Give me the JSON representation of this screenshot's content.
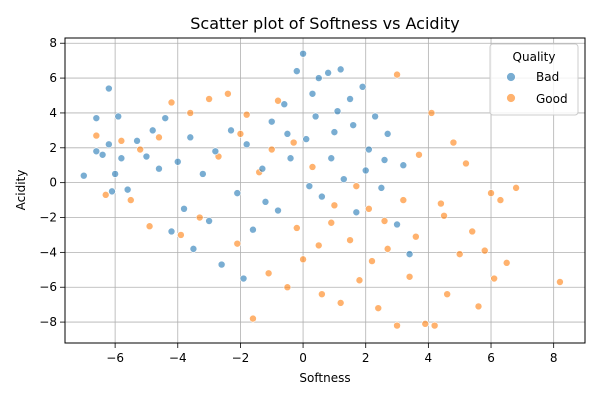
{
  "chart_data": {
    "type": "scatter",
    "title": "Scatter plot of Softness vs Acidity",
    "xlabel": "Softness",
    "ylabel": "Acidity",
    "xlim": [
      -7.6,
      9.0
    ],
    "ylim": [
      -9.2,
      8.3
    ],
    "xticks": [
      -6,
      -4,
      -2,
      0,
      2,
      4,
      6,
      8
    ],
    "yticks": [
      -8,
      -6,
      -4,
      -2,
      0,
      2,
      4,
      6,
      8
    ],
    "grid": true,
    "legend": {
      "title": "Quality",
      "placement": "top-right",
      "entries": [
        {
          "name": "Bad",
          "color": "#1f77b4"
        },
        {
          "name": "Good",
          "color": "#ff7f0e"
        }
      ]
    },
    "series": [
      {
        "name": "Bad",
        "color": "#1f77b4",
        "points": [
          [
            -7.0,
            0.4
          ],
          [
            -6.6,
            3.7
          ],
          [
            -6.6,
            1.8
          ],
          [
            -6.4,
            1.6
          ],
          [
            -6.2,
            5.4
          ],
          [
            -6.2,
            2.2
          ],
          [
            -6.1,
            -0.5
          ],
          [
            -6.0,
            0.5
          ],
          [
            -5.9,
            3.8
          ],
          [
            -5.8,
            1.4
          ],
          [
            -5.6,
            -0.4
          ],
          [
            -5.3,
            2.4
          ],
          [
            -5.0,
            1.5
          ],
          [
            -4.8,
            3.0
          ],
          [
            -4.6,
            0.8
          ],
          [
            -4.4,
            3.7
          ],
          [
            -4.2,
            -2.8
          ],
          [
            -4.0,
            1.2
          ],
          [
            -3.8,
            -1.5
          ],
          [
            -3.6,
            2.6
          ],
          [
            -3.5,
            -3.8
          ],
          [
            -3.2,
            0.5
          ],
          [
            -3.0,
            -2.2
          ],
          [
            -2.8,
            1.8
          ],
          [
            -2.6,
            -4.7
          ],
          [
            -2.3,
            3.0
          ],
          [
            -2.1,
            -0.6
          ],
          [
            -1.9,
            -5.5
          ],
          [
            -1.8,
            2.2
          ],
          [
            -1.6,
            -2.7
          ],
          [
            -1.3,
            0.8
          ],
          [
            -1.0,
            3.5
          ],
          [
            -0.8,
            -1.6
          ],
          [
            -0.6,
            4.5
          ],
          [
            -0.4,
            1.4
          ],
          [
            -0.2,
            6.4
          ],
          [
            0.0,
            7.4
          ],
          [
            0.1,
            2.5
          ],
          [
            0.3,
            5.1
          ],
          [
            0.5,
            6.0
          ],
          [
            0.6,
            -0.8
          ],
          [
            0.8,
            6.3
          ],
          [
            1.0,
            2.9
          ],
          [
            1.2,
            6.5
          ],
          [
            1.3,
            0.2
          ],
          [
            1.5,
            4.8
          ],
          [
            1.7,
            -1.7
          ],
          [
            1.9,
            5.5
          ],
          [
            2.1,
            1.9
          ],
          [
            2.3,
            3.8
          ],
          [
            2.5,
            -0.3
          ],
          [
            2.7,
            2.8
          ],
          [
            3.0,
            -2.4
          ],
          [
            3.2,
            1.0
          ],
          [
            3.4,
            -4.1
          ],
          [
            0.9,
            1.4
          ],
          [
            1.6,
            3.3
          ],
          [
            0.2,
            -0.2
          ],
          [
            2.0,
            0.7
          ],
          [
            -0.5,
            2.8
          ],
          [
            1.1,
            4.1
          ],
          [
            2.6,
            1.3
          ],
          [
            -1.2,
            -1.1
          ],
          [
            0.4,
            3.8
          ]
        ]
      },
      {
        "name": "Good",
        "color": "#ff7f0e",
        "points": [
          [
            -6.6,
            2.7
          ],
          [
            -6.3,
            -0.7
          ],
          [
            -5.8,
            2.4
          ],
          [
            -5.5,
            -1.0
          ],
          [
            -5.2,
            1.9
          ],
          [
            -4.9,
            -2.5
          ],
          [
            -4.6,
            2.6
          ],
          [
            -4.2,
            4.6
          ],
          [
            -3.9,
            -3.0
          ],
          [
            -3.6,
            4.0
          ],
          [
            -3.3,
            -2.0
          ],
          [
            -3.0,
            4.8
          ],
          [
            -2.7,
            1.5
          ],
          [
            -2.4,
            5.1
          ],
          [
            -2.1,
            -3.5
          ],
          [
            -1.8,
            3.9
          ],
          [
            -1.6,
            -7.8
          ],
          [
            -1.4,
            0.6
          ],
          [
            -1.1,
            -5.2
          ],
          [
            -0.8,
            4.7
          ],
          [
            -0.5,
            -6.0
          ],
          [
            -0.3,
            2.3
          ],
          [
            0.0,
            -4.4
          ],
          [
            0.3,
            0.9
          ],
          [
            0.6,
            -6.4
          ],
          [
            0.9,
            -2.3
          ],
          [
            1.2,
            -6.9
          ],
          [
            1.5,
            -3.3
          ],
          [
            1.8,
            -5.6
          ],
          [
            2.1,
            -1.5
          ],
          [
            2.4,
            -7.2
          ],
          [
            2.7,
            -3.8
          ],
          [
            3.0,
            -8.2
          ],
          [
            3.2,
            -1.0
          ],
          [
            3.4,
            -5.4
          ],
          [
            3.7,
            1.6
          ],
          [
            3.9,
            -8.1
          ],
          [
            4.1,
            4.0
          ],
          [
            4.2,
            -8.2
          ],
          [
            4.4,
            -1.2
          ],
          [
            4.6,
            -6.4
          ],
          [
            4.8,
            2.3
          ],
          [
            5.0,
            -4.1
          ],
          [
            5.2,
            1.1
          ],
          [
            5.4,
            -2.8
          ],
          [
            5.6,
            -7.1
          ],
          [
            5.8,
            -3.9
          ],
          [
            6.0,
            -0.6
          ],
          [
            6.1,
            -5.5
          ],
          [
            6.3,
            -1.0
          ],
          [
            6.5,
            -4.6
          ],
          [
            6.8,
            -0.3
          ],
          [
            8.2,
            -5.7
          ],
          [
            3.0,
            6.2
          ],
          [
            2.6,
            -2.2
          ],
          [
            1.0,
            -1.3
          ],
          [
            -0.2,
            -2.6
          ],
          [
            1.7,
            -0.2
          ],
          [
            3.6,
            -3.1
          ],
          [
            4.5,
            -1.9
          ],
          [
            -2.0,
            2.8
          ],
          [
            -1.0,
            1.9
          ],
          [
            0.5,
            -3.6
          ],
          [
            2.2,
            -4.5
          ]
        ]
      }
    ]
  }
}
